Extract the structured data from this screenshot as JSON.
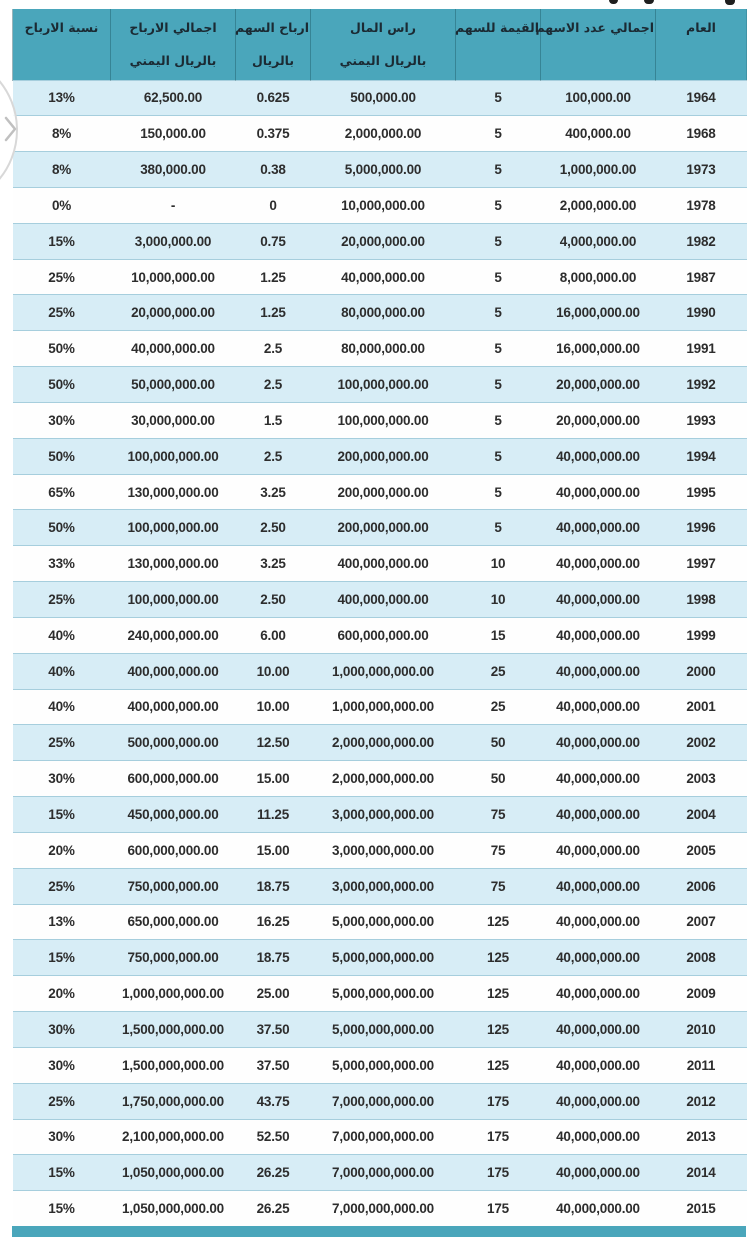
{
  "page": {
    "background": "#ffffff"
  },
  "carousel": {
    "next_icon": "chevron-right"
  },
  "table": {
    "colors": {
      "header_bg": "#4aa6bb",
      "row_alt_bg": "#d7edf6",
      "row_bg": "#fefefe",
      "border": "#b3d6e2",
      "bottom_bar": "#4aa6bb",
      "header_text": "#1b2a33",
      "cell_text": "#2d2d2d"
    },
    "columns": [
      {
        "key": "year",
        "lines": [
          "العام"
        ]
      },
      {
        "key": "shares",
        "lines": [
          "اجمالي عدد الاسهم"
        ]
      },
      {
        "key": "value",
        "lines": [
          "القيمة للسهم"
        ]
      },
      {
        "key": "capital",
        "lines": [
          "راس المال",
          "بالريال اليمني"
        ]
      },
      {
        "key": "eps",
        "lines": [
          "ارباح السهم",
          "بالريال"
        ]
      },
      {
        "key": "profits",
        "lines": [
          "اجمالي الارباح",
          "بالريال اليمني"
        ]
      },
      {
        "key": "pct",
        "lines": [
          "نسبة الارباح"
        ]
      }
    ],
    "rows": [
      [
        "1964",
        "100,000.00",
        "5",
        "500,000.00",
        "0.625",
        "62,500.00",
        "13%"
      ],
      [
        "1968",
        "400,000.00",
        "5",
        "2,000,000.00",
        "0.375",
        "150,000.00",
        "8%"
      ],
      [
        "1973",
        "1,000,000.00",
        "5",
        "5,000,000.00",
        "0.38",
        "380,000.00",
        "8%"
      ],
      [
        "1978",
        "2,000,000.00",
        "5",
        "10,000,000.00",
        "0",
        "-",
        "0%"
      ],
      [
        "1982",
        "4,000,000.00",
        "5",
        "20,000,000.00",
        "0.75",
        "3,000,000.00",
        "15%"
      ],
      [
        "1987",
        "8,000,000.00",
        "5",
        "40,000,000.00",
        "1.25",
        "10,000,000.00",
        "25%"
      ],
      [
        "1990",
        "16,000,000.00",
        "5",
        "80,000,000.00",
        "1.25",
        "20,000,000.00",
        "25%"
      ],
      [
        "1991",
        "16,000,000.00",
        "5",
        "80,000,000.00",
        "2.5",
        "40,000,000.00",
        "50%"
      ],
      [
        "1992",
        "20,000,000.00",
        "5",
        "100,000,000.00",
        "2.5",
        "50,000,000.00",
        "50%"
      ],
      [
        "1993",
        "20,000,000.00",
        "5",
        "100,000,000.00",
        "1.5",
        "30,000,000.00",
        "30%"
      ],
      [
        "1994",
        "40,000,000.00",
        "5",
        "200,000,000.00",
        "2.5",
        "100,000,000.00",
        "50%"
      ],
      [
        "1995",
        "40,000,000.00",
        "5",
        "200,000,000.00",
        "3.25",
        "130,000,000.00",
        "65%"
      ],
      [
        "1996",
        "40,000,000.00",
        "5",
        "200,000,000.00",
        "2.50",
        "100,000,000.00",
        "50%"
      ],
      [
        "1997",
        "40,000,000.00",
        "10",
        "400,000,000.00",
        "3.25",
        "130,000,000.00",
        "33%"
      ],
      [
        "1998",
        "40,000,000.00",
        "10",
        "400,000,000.00",
        "2.50",
        "100,000,000.00",
        "25%"
      ],
      [
        "1999",
        "40,000,000.00",
        "15",
        "600,000,000.00",
        "6.00",
        "240,000,000.00",
        "40%"
      ],
      [
        "2000",
        "40,000,000.00",
        "25",
        "1,000,000,000.00",
        "10.00",
        "400,000,000.00",
        "40%"
      ],
      [
        "2001",
        "40,000,000.00",
        "25",
        "1,000,000,000.00",
        "10.00",
        "400,000,000.00",
        "40%"
      ],
      [
        "2002",
        "40,000,000.00",
        "50",
        "2,000,000,000.00",
        "12.50",
        "500,000,000.00",
        "25%"
      ],
      [
        "2003",
        "40,000,000.00",
        "50",
        "2,000,000,000.00",
        "15.00",
        "600,000,000.00",
        "30%"
      ],
      [
        "2004",
        "40,000,000.00",
        "75",
        "3,000,000,000.00",
        "11.25",
        "450,000,000.00",
        "15%"
      ],
      [
        "2005",
        "40,000,000.00",
        "75",
        "3,000,000,000.00",
        "15.00",
        "600,000,000.00",
        "20%"
      ],
      [
        "2006",
        "40,000,000.00",
        "75",
        "3,000,000,000.00",
        "18.75",
        "750,000,000.00",
        "25%"
      ],
      [
        "2007",
        "40,000,000.00",
        "125",
        "5,000,000,000.00",
        "16.25",
        "650,000,000.00",
        "13%"
      ],
      [
        "2008",
        "40,000,000.00",
        "125",
        "5,000,000,000.00",
        "18.75",
        "750,000,000.00",
        "15%"
      ],
      [
        "2009",
        "40,000,000.00",
        "125",
        "5,000,000,000.00",
        "25.00",
        "1,000,000,000.00",
        "20%"
      ],
      [
        "2010",
        "40,000,000.00",
        "125",
        "5,000,000,000.00",
        "37.50",
        "1,500,000,000.00",
        "30%"
      ],
      [
        "2011",
        "40,000,000.00",
        "125",
        "5,000,000,000.00",
        "37.50",
        "1,500,000,000.00",
        "30%"
      ],
      [
        "2012",
        "40,000,000.00",
        "175",
        "7,000,000,000.00",
        "43.75",
        "1,750,000,000.00",
        "25%"
      ],
      [
        "2013",
        "40,000,000.00",
        "175",
        "7,000,000,000.00",
        "52.50",
        "2,100,000,000.00",
        "30%"
      ],
      [
        "2014",
        "40,000,000.00",
        "175",
        "7,000,000,000.00",
        "26.25",
        "1,050,000,000.00",
        "15%"
      ],
      [
        "2015",
        "40,000,000.00",
        "175",
        "7,000,000,000.00",
        "26.25",
        "1,050,000,000.00",
        "15%"
      ]
    ]
  },
  "chart_data": {
    "type": "table",
    "title": "",
    "columns_rtl": [
      "العام",
      "اجمالي عدد الاسهم",
      "القيمة للسهم",
      "راس المال بالريال اليمني",
      "ارباح السهم بالريال",
      "اجمالي الارباح بالريال اليمني",
      "نسبة الارباح"
    ],
    "years": [
      1964,
      1968,
      1973,
      1978,
      1982,
      1987,
      1990,
      1991,
      1992,
      1993,
      1994,
      1995,
      1996,
      1997,
      1998,
      1999,
      2000,
      2001,
      2002,
      2003,
      2004,
      2005,
      2006,
      2007,
      2008,
      2009,
      2010,
      2011,
      2012,
      2013,
      2014,
      2015
    ],
    "profit_pct": [
      13,
      8,
      8,
      0,
      15,
      25,
      25,
      50,
      50,
      30,
      50,
      65,
      50,
      33,
      25,
      40,
      40,
      40,
      25,
      30,
      15,
      20,
      25,
      13,
      15,
      20,
      30,
      30,
      25,
      30,
      15,
      15
    ]
  }
}
